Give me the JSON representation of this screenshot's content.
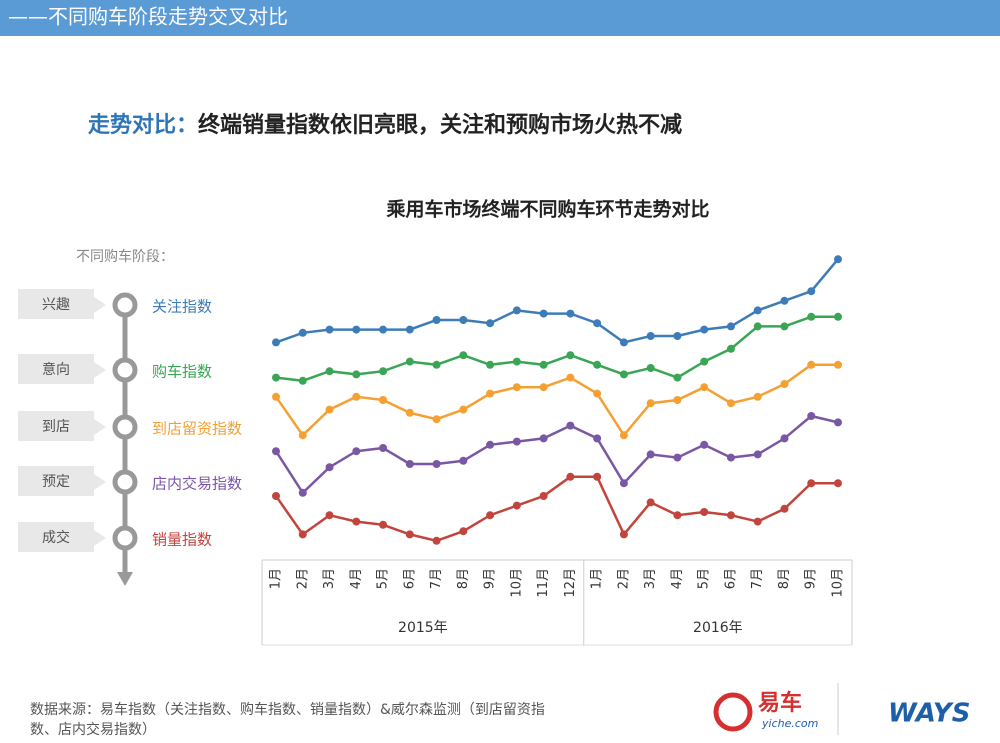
{
  "header": {
    "title": "——不同购车阶段走势交叉对比"
  },
  "headline": {
    "lead": "走势对比：",
    "text": "终端销量指数依旧亮眼，关注和预购市场火热不减"
  },
  "chart_data": {
    "type": "line",
    "title": "乘用车市场终端不同购车环节走势对比",
    "legend_title": "不同购车阶段：",
    "stages": [
      "兴趣",
      "意向",
      "到店",
      "预定",
      "成交"
    ],
    "categories": [
      "1月",
      "2月",
      "3月",
      "4月",
      "5月",
      "6月",
      "7月",
      "8月",
      "9月",
      "10月",
      "11月",
      "12月",
      "1月",
      "2月",
      "3月",
      "4月",
      "5月",
      "6月",
      "7月",
      "8月",
      "9月",
      "10月"
    ],
    "year_groups": [
      {
        "label": "2015年",
        "count": 12
      },
      {
        "label": "2016年",
        "count": 10
      }
    ],
    "ylim": [
      0,
      100
    ],
    "series": [
      {
        "name": "关注指数",
        "color": "#3d7cb8",
        "values": [
          68,
          71,
          72,
          72,
          72,
          72,
          75,
          75,
          74,
          78,
          77,
          77,
          74,
          68,
          70,
          70,
          72,
          73,
          78,
          81,
          84,
          94
        ]
      },
      {
        "name": "购车指数",
        "color": "#3aa655",
        "values": [
          57,
          56,
          59,
          58,
          59,
          62,
          61,
          64,
          61,
          62,
          61,
          64,
          61,
          58,
          60,
          57,
          62,
          66,
          73,
          73,
          76,
          76
        ]
      },
      {
        "name": "到店留资指数",
        "color": "#f5a033",
        "values": [
          51,
          39,
          47,
          51,
          50,
          46,
          44,
          47,
          52,
          54,
          54,
          57,
          52,
          39,
          49,
          50,
          54,
          49,
          51,
          55,
          61,
          61
        ]
      },
      {
        "name": "店内交易指数",
        "color": "#7a57a4",
        "values": [
          34,
          21,
          29,
          34,
          35,
          30,
          30,
          31,
          36,
          37,
          38,
          42,
          38,
          24,
          33,
          32,
          36,
          32,
          33,
          38,
          45,
          43
        ]
      },
      {
        "name": "销量指数",
        "color": "#c2453d",
        "values": [
          20,
          8,
          14,
          12,
          11,
          8,
          6,
          9,
          14,
          17,
          20,
          26,
          26,
          8,
          18,
          14,
          15,
          14,
          12,
          16,
          24,
          24
        ]
      }
    ]
  },
  "footer": {
    "source": "数据来源：易车指数（关注指数、购车指数、销量指数）&威尔森监测（到店留资指数、店内交易指数）",
    "logo1": "易车",
    "logo1_sub": "yiche.com",
    "logo2": "WAYS"
  }
}
